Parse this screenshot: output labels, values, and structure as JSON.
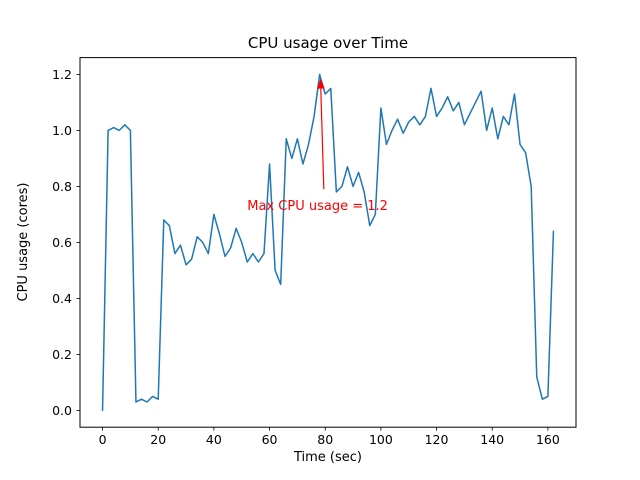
{
  "chart_data": {
    "type": "line",
    "title": "CPU usage over Time",
    "xlabel": "Time (sec)",
    "ylabel": "CPU usage (cores)",
    "line_color": "#1f77b4",
    "line_width": 1.5,
    "grid": false,
    "legend": "none",
    "xlim": [
      -8.1,
      170.1
    ],
    "ylim": [
      -0.06,
      1.26
    ],
    "xtick_values": [
      0,
      20,
      40,
      60,
      80,
      100,
      120,
      140,
      160
    ],
    "xtick_labels": [
      "0",
      "20",
      "40",
      "60",
      "80",
      "100",
      "120",
      "140",
      "160"
    ],
    "ytick_values": [
      0.0,
      0.2,
      0.4,
      0.6,
      0.8,
      1.0,
      1.2
    ],
    "ytick_labels": [
      "0.0",
      "0.2",
      "0.4",
      "0.6",
      "0.8",
      "1.0",
      "1.2"
    ],
    "x": [
      0,
      2,
      4,
      6,
      8,
      10,
      12,
      14,
      16,
      18,
      20,
      22,
      24,
      26,
      28,
      30,
      32,
      34,
      36,
      38,
      40,
      42,
      44,
      46,
      48,
      50,
      52,
      54,
      56,
      58,
      60,
      62,
      64,
      66,
      68,
      70,
      72,
      74,
      76,
      78,
      80,
      82,
      84,
      86,
      88,
      90,
      92,
      94,
      96,
      98,
      100,
      102,
      104,
      106,
      108,
      110,
      112,
      114,
      116,
      118,
      120,
      122,
      124,
      126,
      128,
      130,
      132,
      134,
      136,
      138,
      140,
      142,
      144,
      146,
      148,
      150,
      152,
      154,
      156,
      158,
      160,
      162
    ],
    "y": [
      0.0,
      1.0,
      1.01,
      1.0,
      1.02,
      1.0,
      0.03,
      0.04,
      0.03,
      0.05,
      0.04,
      0.68,
      0.66,
      0.56,
      0.59,
      0.52,
      0.54,
      0.62,
      0.6,
      0.56,
      0.7,
      0.63,
      0.55,
      0.58,
      0.65,
      0.6,
      0.53,
      0.56,
      0.53,
      0.56,
      0.88,
      0.5,
      0.45,
      0.97,
      0.9,
      0.97,
      0.88,
      0.95,
      1.05,
      1.2,
      1.13,
      1.15,
      0.78,
      0.8,
      0.87,
      0.8,
      0.85,
      0.78,
      0.66,
      0.7,
      1.08,
      0.95,
      1.0,
      1.04,
      0.99,
      1.03,
      1.05,
      1.02,
      1.05,
      1.15,
      1.05,
      1.08,
      1.12,
      1.07,
      1.1,
      1.02,
      1.06,
      1.1,
      1.14,
      1.0,
      1.08,
      0.97,
      1.05,
      1.02,
      1.13,
      0.95,
      0.92,
      0.8,
      0.12,
      0.04,
      0.05,
      0.64
    ],
    "max_point": {
      "x": 78,
      "y": 1.2
    },
    "annotation": {
      "text": "Max CPU usage = 1.2",
      "color": "#ff0000",
      "text_x": 52,
      "text_y": 0.715,
      "arrow_from_x": 79.5,
      "arrow_from_y": 0.79,
      "arrow_to_x": 78.3,
      "arrow_to_y": 1.185
    }
  }
}
